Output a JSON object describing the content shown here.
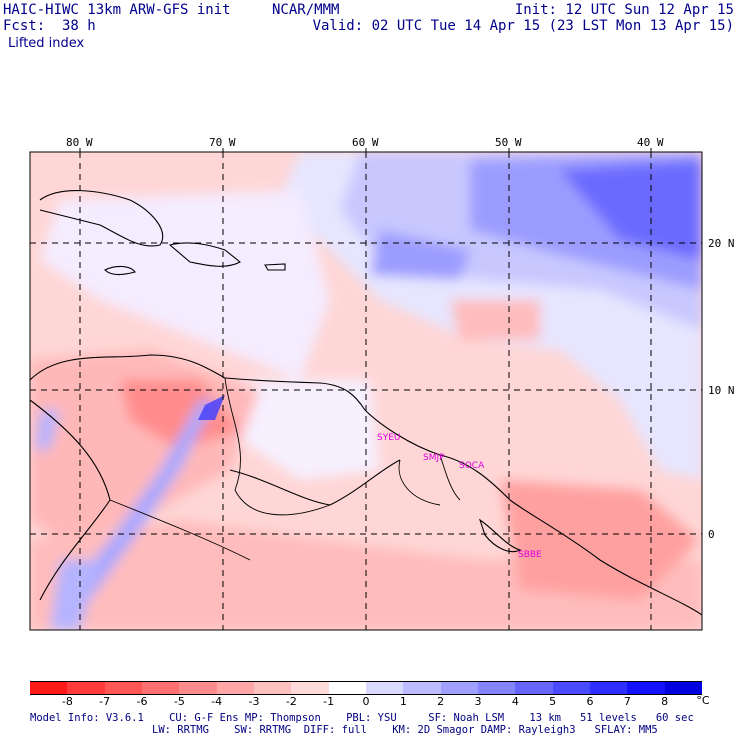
{
  "header": {
    "model": "HAIC-HIWC 13km ARW-GFS init",
    "org": "NCAR/MMM",
    "init": "Init: 12 UTC Sun 12 Apr 15",
    "fcst": "Fcst:  38 h",
    "valid": "Valid: 02 UTC Tue 14 Apr 15 (23 LST Mon 13 Apr 15)",
    "field": "Lifted index"
  },
  "axes": {
    "lon_labels": [
      "80 W",
      "70 W",
      "60 W",
      "50 W",
      "40 W"
    ],
    "lat_labels": [
      "20 N",
      "10 N",
      "0"
    ]
  },
  "stations": [
    "SYEU",
    "SMJP",
    "SOCA",
    "SBBE"
  ],
  "colorbar": {
    "values": [
      "-8",
      "-7",
      "-6",
      "-5",
      "-4",
      "-3",
      "-2",
      "-1",
      "0",
      "1",
      "2",
      "3",
      "4",
      "5",
      "6",
      "7",
      "8"
    ],
    "unit": "°C",
    "colors": [
      "#ff1a1a",
      "#ff3a3a",
      "#ff5656",
      "#ff7070",
      "#ff8c8c",
      "#ffa6a6",
      "#ffc0c0",
      "#ffdada",
      "#ffffff",
      "#dadaff",
      "#bcbcff",
      "#a0a0ff",
      "#8484ff",
      "#6666ff",
      "#4a4aff",
      "#2e2eff",
      "#1212ff",
      "#0000e0"
    ]
  },
  "footer": {
    "line1": "Model Info: V3.6.1    CU: G-F Ens MP: Thompson    PBL: YSU     SF: Noah LSM    13 km   51 levels   60 sec",
    "line2": "LW: RRTMG    SW: RRTMG  DIFF: full    KM: 2D Smagor DAMP: Rayleigh3   SFLAY: MM5"
  }
}
